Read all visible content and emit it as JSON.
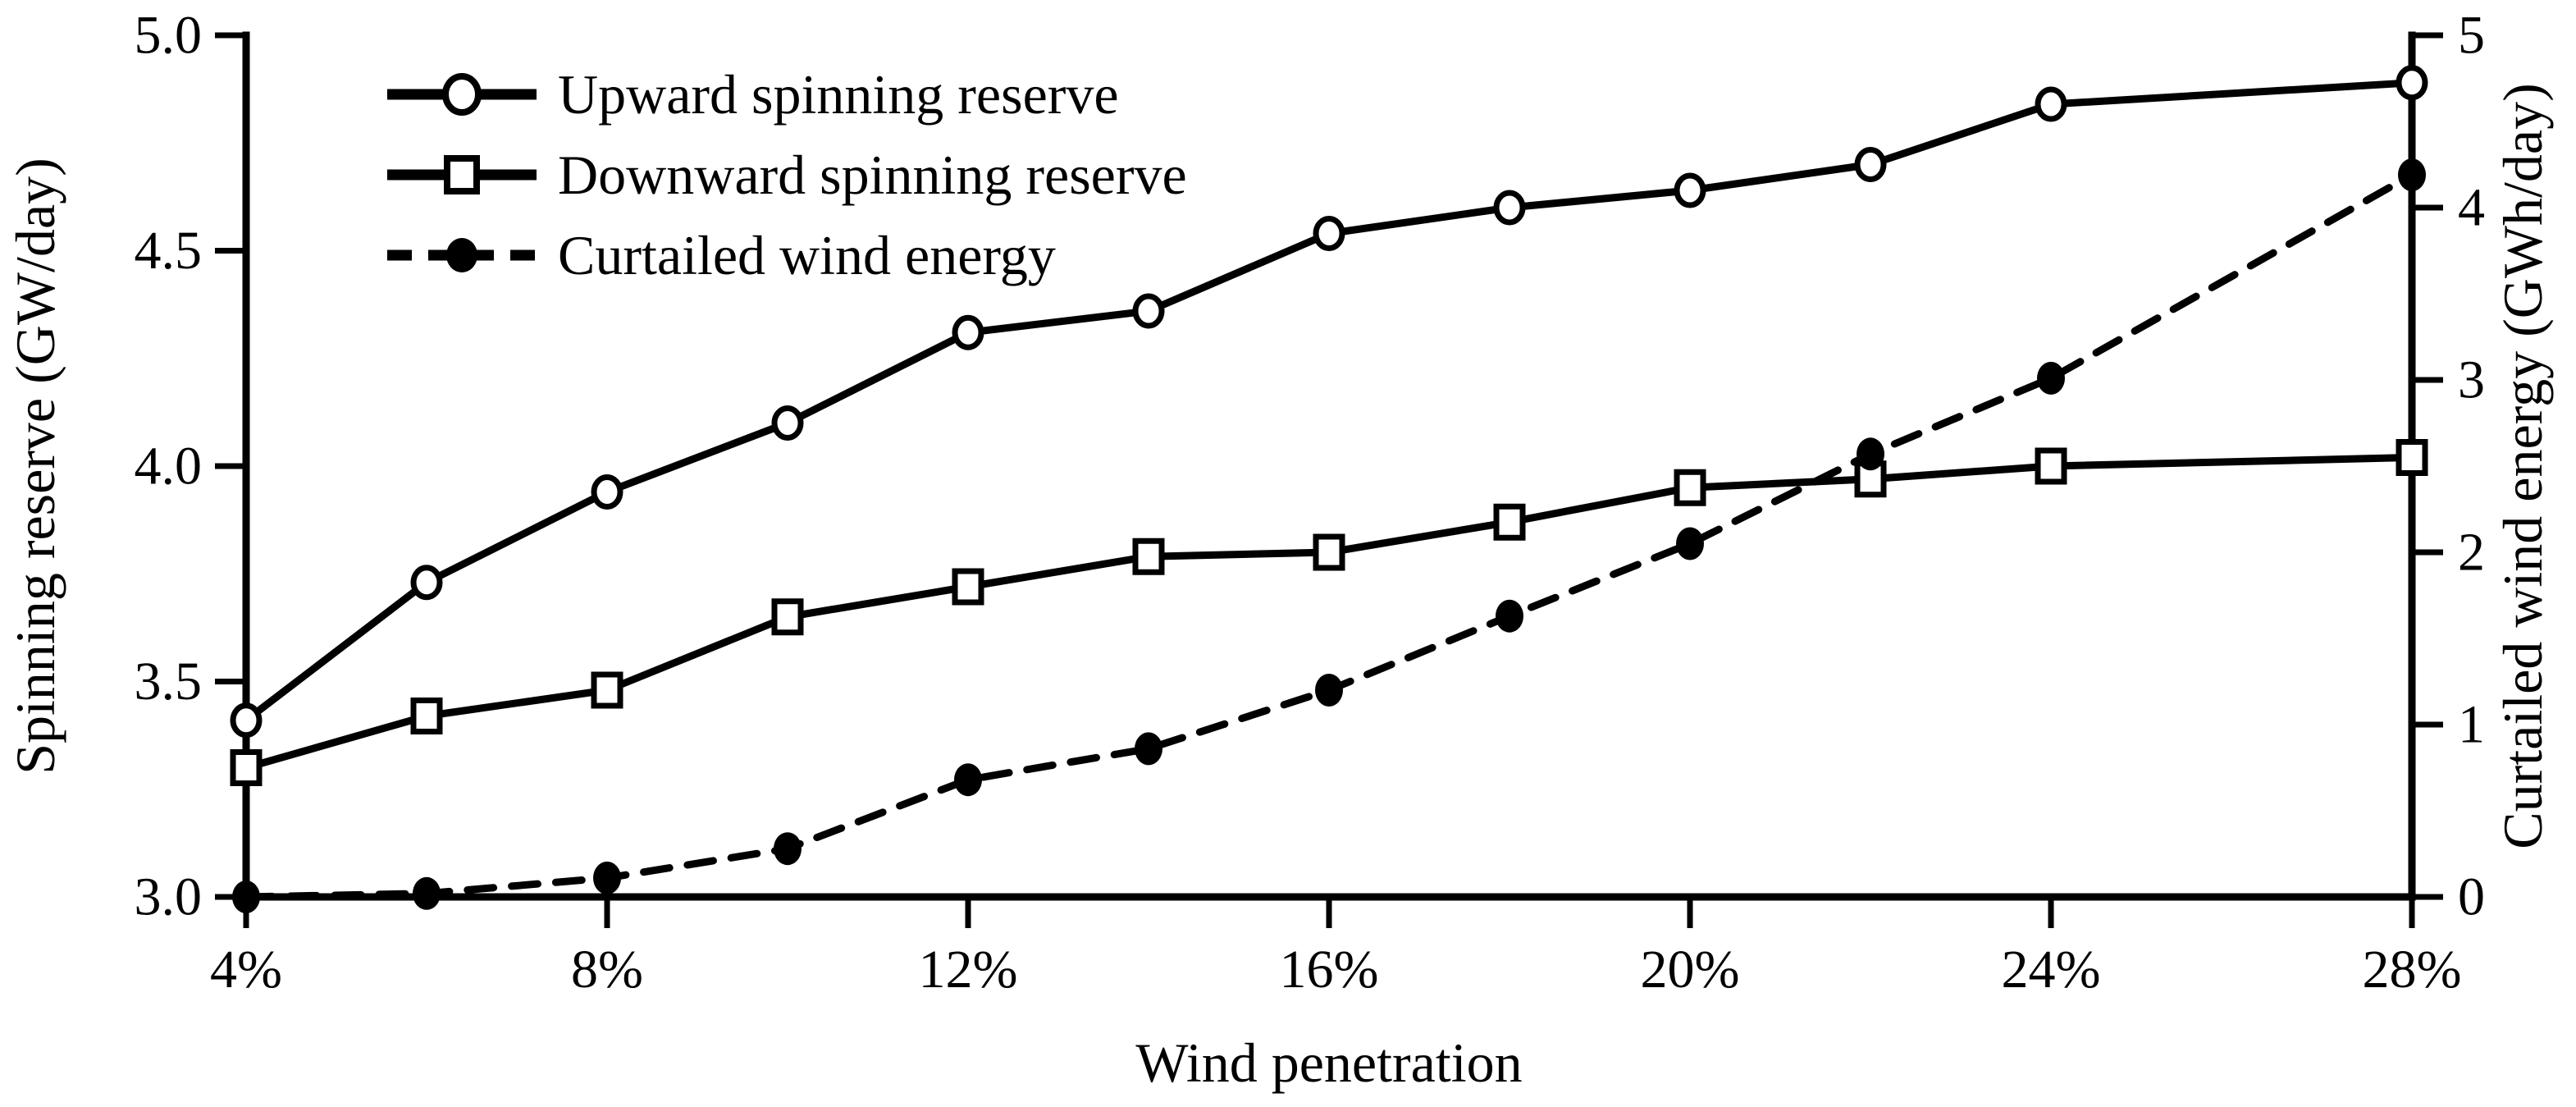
{
  "figure": {
    "background": "#ffffff",
    "ink_color": "#000000"
  },
  "chart_data": {
    "type": "line",
    "title": "",
    "xlabel": "Wind penetration",
    "x_values": [
      4,
      6,
      8,
      10,
      12,
      14,
      16,
      18,
      20,
      22,
      24,
      28
    ],
    "x_ticks": [
      4,
      8,
      12,
      16,
      20,
      24,
      28
    ],
    "x_tick_labels": [
      "4%",
      "8%",
      "12%",
      "16%",
      "20%",
      "24%",
      "28%"
    ],
    "x_range": [
      4,
      28
    ],
    "grid": false,
    "legend_position": "upper-left-inside",
    "left_axis": {
      "label": "Spinning reserve (GW/day)",
      "min": 3.0,
      "max": 5.0,
      "tick_values": [
        3.0,
        3.5,
        4.0,
        4.5,
        5.0
      ],
      "tick_labels": [
        "3.0",
        "3.5",
        "4.0",
        "4.5",
        "5.0"
      ]
    },
    "right_axis": {
      "label": "Curtailed wind energy  (GWh/day)",
      "min": 0,
      "max": 5,
      "tick_values": [
        0,
        1,
        2,
        3,
        4,
        5
      ],
      "tick_labels": [
        "0",
        "1",
        "2",
        "3",
        "4",
        "5"
      ]
    },
    "series": [
      {
        "name": "Upward spinning reserve",
        "axis": "left",
        "line_style": "solid",
        "marker": "open-circle",
        "values": [
          3.41,
          3.73,
          3.94,
          4.1,
          4.31,
          4.36,
          4.54,
          4.6,
          4.64,
          4.7,
          4.84,
          4.89
        ]
      },
      {
        "name": "Downward spinning reserve",
        "axis": "left",
        "line_style": "solid",
        "marker": "open-square",
        "values": [
          3.3,
          3.42,
          3.48,
          3.65,
          3.72,
          3.79,
          3.8,
          3.87,
          3.95,
          3.97,
          4.0,
          4.02
        ]
      },
      {
        "name": "Curtailed wind energy",
        "axis": "right",
        "line_style": "dashed",
        "marker": "filled-circle",
        "values": [
          0.0,
          0.02,
          0.11,
          0.28,
          0.68,
          0.86,
          1.2,
          1.63,
          2.05,
          2.57,
          3.01,
          4.19
        ]
      }
    ]
  }
}
